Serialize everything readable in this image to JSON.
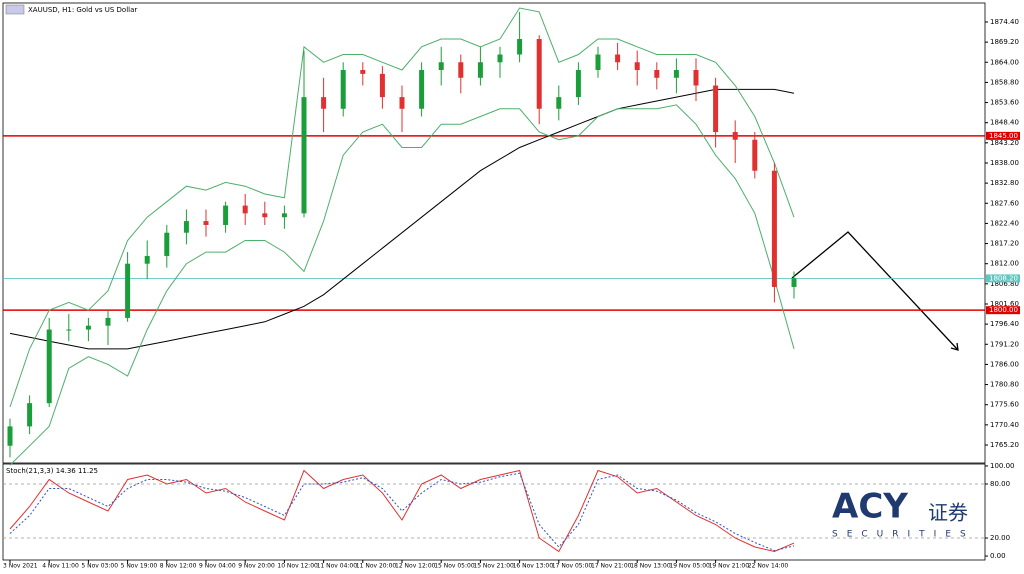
{
  "chart_data": [
    {
      "type": "candlestick",
      "title": "XAUUSD, H1: Gold vs US Dollar",
      "categories": [
        "3 Nov 2021",
        null,
        "4 Nov 11:00",
        null,
        "5 Nov 03:00",
        null,
        "5 Nov 19:00",
        null,
        "8 Nov 12:00",
        null,
        "9 Nov 04:00",
        null,
        "9 Nov 20:00",
        null,
        "10 Nov 12:00",
        null,
        "11 Nov 04:00",
        null,
        "11 Nov 20:00",
        null,
        "12 Nov 12:00",
        null,
        "15 Nov 05:00",
        null,
        "15 Nov 21:00",
        null,
        "16 Nov 13:00",
        null,
        "17 Nov 05:00",
        null,
        "17 Nov 21:00",
        null,
        "18 Nov 13:00",
        null,
        "19 Nov 05:00",
        null,
        "19 Nov 21:00",
        null,
        "22 Nov 14:00",
        null,
        null
      ],
      "open": [
        1765,
        1770,
        1776,
        1795,
        1795,
        1796,
        1798,
        1812,
        1814,
        1820,
        1823,
        1822,
        1827,
        1825,
        1824,
        1825,
        1855,
        1852,
        1862,
        1861,
        1855,
        1852,
        1862,
        1864,
        1860,
        1864,
        1866,
        1870,
        1852,
        1855,
        1862,
        1866,
        1864,
        1862,
        1860,
        1862,
        1858,
        1846,
        1844,
        1836,
        1806
      ],
      "high": [
        1772,
        1778,
        1798,
        1799,
        1798,
        1800,
        1815,
        1818,
        1822,
        1826,
        1826,
        1828,
        1830,
        1828,
        1827,
        1867,
        1860,
        1864,
        1864,
        1863,
        1858,
        1864,
        1868,
        1866,
        1868,
        1868,
        1877,
        1871,
        1858,
        1864,
        1868,
        1869,
        1867,
        1864,
        1865,
        1865,
        1860,
        1849,
        1846,
        1838,
        1810
      ],
      "low": [
        1762,
        1768,
        1775,
        1792,
        1792,
        1791,
        1797,
        1808,
        1811,
        1817,
        1819,
        1820,
        1822,
        1822,
        1821,
        1824,
        1846,
        1850,
        1858,
        1852,
        1846,
        1850,
        1858,
        1856,
        1858,
        1860,
        1864,
        1848,
        1849,
        1853,
        1860,
        1862,
        1858,
        1857,
        1856,
        1854,
        1842,
        1838,
        1834,
        1802,
        1803
      ],
      "close": [
        1770,
        1776,
        1795,
        1795,
        1796,
        1798,
        1812,
        1814,
        1820,
        1823,
        1822,
        1827,
        1825,
        1824,
        1825,
        1855,
        1852,
        1862,
        1861,
        1855,
        1852,
        1862,
        1864,
        1860,
        1864,
        1866,
        1870,
        1852,
        1855,
        1862,
        1866,
        1864,
        1862,
        1860,
        1862,
        1858,
        1846,
        1844,
        1836,
        1806,
        1808.2
      ],
      "up_color": "#1a9e3a",
      "down_color": "#e03030",
      "series": [
        {
          "name": "MA",
          "color": "#000000",
          "values": [
            1794,
            1793,
            1792,
            1791,
            1790,
            1790,
            1790,
            1791,
            1792,
            1793,
            1794,
            1795,
            1796,
            1797,
            1799,
            1801,
            1804,
            1808,
            1812,
            1816,
            1820,
            1824,
            1828,
            1832,
            1836,
            1839,
            1842,
            1844,
            1846,
            1848,
            1850,
            1852,
            1853,
            1854,
            1855,
            1856,
            1857,
            1857,
            1857,
            1857,
            1856
          ]
        },
        {
          "name": "Bands upper",
          "color": "#4caf6a",
          "values": [
            1775,
            1790,
            1800,
            1802,
            1800,
            1805,
            1818,
            1824,
            1828,
            1832,
            1831,
            1833,
            1832,
            1830,
            1829,
            1868,
            1864,
            1866,
            1866,
            1864,
            1862,
            1868,
            1870,
            1870,
            1868,
            1870,
            1878,
            1877,
            1864,
            1866,
            1870,
            1870,
            1868,
            1866,
            1866,
            1866,
            1864,
            1858,
            1850,
            1838,
            1824
          ]
        },
        {
          "name": "Bands lower",
          "color": "#4caf6a",
          "values": [
            1760,
            1765,
            1770,
            1785,
            1788,
            1786,
            1783,
            1795,
            1805,
            1812,
            1815,
            1815,
            1818,
            1818,
            1815,
            1810,
            1823,
            1840,
            1846,
            1848,
            1842,
            1842,
            1848,
            1848,
            1850,
            1852,
            1852,
            1846,
            1844,
            1845,
            1850,
            1852,
            1852,
            1852,
            1853,
            1848,
            1840,
            1834,
            1825,
            1808,
            1790
          ]
        }
      ],
      "levels": [
        {
          "value": 1845,
          "label": "1845.00",
          "color": "#e00000"
        },
        {
          "value": 1800,
          "label": "1800.00",
          "color": "#e00000"
        },
        {
          "value": 1808.2,
          "label": "1808.20",
          "color": "#5fc7c0"
        }
      ],
      "ylim": [
        1760.55,
        1879.3
      ],
      "yticks": [
        {
          "value": 1874.4,
          "label": "1874.40"
        },
        {
          "value": 1869.2,
          "label": "1869.20"
        },
        {
          "value": 1864,
          "label": "1864.00"
        },
        {
          "value": 1858.8,
          "label": "1858.80"
        },
        {
          "value": 1853.6,
          "label": "1853.60"
        },
        {
          "value": 1848.4,
          "label": "1848.40"
        },
        {
          "value": 1843.2,
          "label": "1843.20"
        },
        {
          "value": 1838,
          "label": "1838.00"
        },
        {
          "value": 1832.8,
          "label": "1832.80"
        },
        {
          "value": 1827.6,
          "label": "1827.60"
        },
        {
          "value": 1822.4,
          "label": "1822.40"
        },
        {
          "value": 1817.2,
          "label": "1817.20"
        },
        {
          "value": 1812,
          "label": "1812.00"
        },
        {
          "value": 1806.8,
          "label": "1806.80"
        },
        {
          "value": 1801.6,
          "label": "1801.60"
        },
        {
          "value": 1796.4,
          "label": "1796.40"
        },
        {
          "value": 1791.2,
          "label": "1791.20"
        },
        {
          "value": 1786,
          "label": "1786.00"
        },
        {
          "value": 1780.8,
          "label": "1780.80"
        },
        {
          "value": 1775.6,
          "label": "1775.60"
        },
        {
          "value": 1770.4,
          "label": "1770.40"
        },
        {
          "value": 1765.2,
          "label": "1765.20"
        }
      ]
    },
    {
      "type": "line",
      "title": "Stoch(21,3,3) 14.36 11.25",
      "series": [
        {
          "name": "Main",
          "color": "#e03030",
          "dashed": false,
          "values": [
            30,
            55,
            85,
            70,
            60,
            50,
            85,
            90,
            80,
            85,
            70,
            75,
            60,
            50,
            40,
            95,
            75,
            85,
            90,
            70,
            40,
            80,
            90,
            75,
            85,
            90,
            95,
            20,
            5,
            45,
            95,
            88,
            70,
            75,
            60,
            45,
            35,
            20,
            10,
            5,
            14.36
          ]
        },
        {
          "name": "Signal",
          "color": "#3050c0",
          "dashed": true,
          "values": [
            25,
            45,
            75,
            75,
            65,
            55,
            75,
            85,
            85,
            82,
            75,
            72,
            65,
            55,
            45,
            80,
            80,
            82,
            87,
            75,
            50,
            70,
            85,
            80,
            82,
            88,
            92,
            35,
            10,
            35,
            85,
            90,
            75,
            72,
            62,
            48,
            38,
            25,
            15,
            6,
            11.25
          ]
        }
      ],
      "ylim": [
        -4.4,
        103.3
      ],
      "yticks": [
        {
          "value": 100,
          "label": "100.00"
        },
        {
          "value": 80,
          "label": "80.00"
        },
        {
          "value": 20,
          "label": "20.00"
        },
        {
          "value": 0,
          "label": "0.00"
        }
      ],
      "levels": [
        80,
        20
      ]
    }
  ],
  "logo": {
    "brand": "ACY",
    "chinese": "证券",
    "tagline": "SECURITIES"
  }
}
